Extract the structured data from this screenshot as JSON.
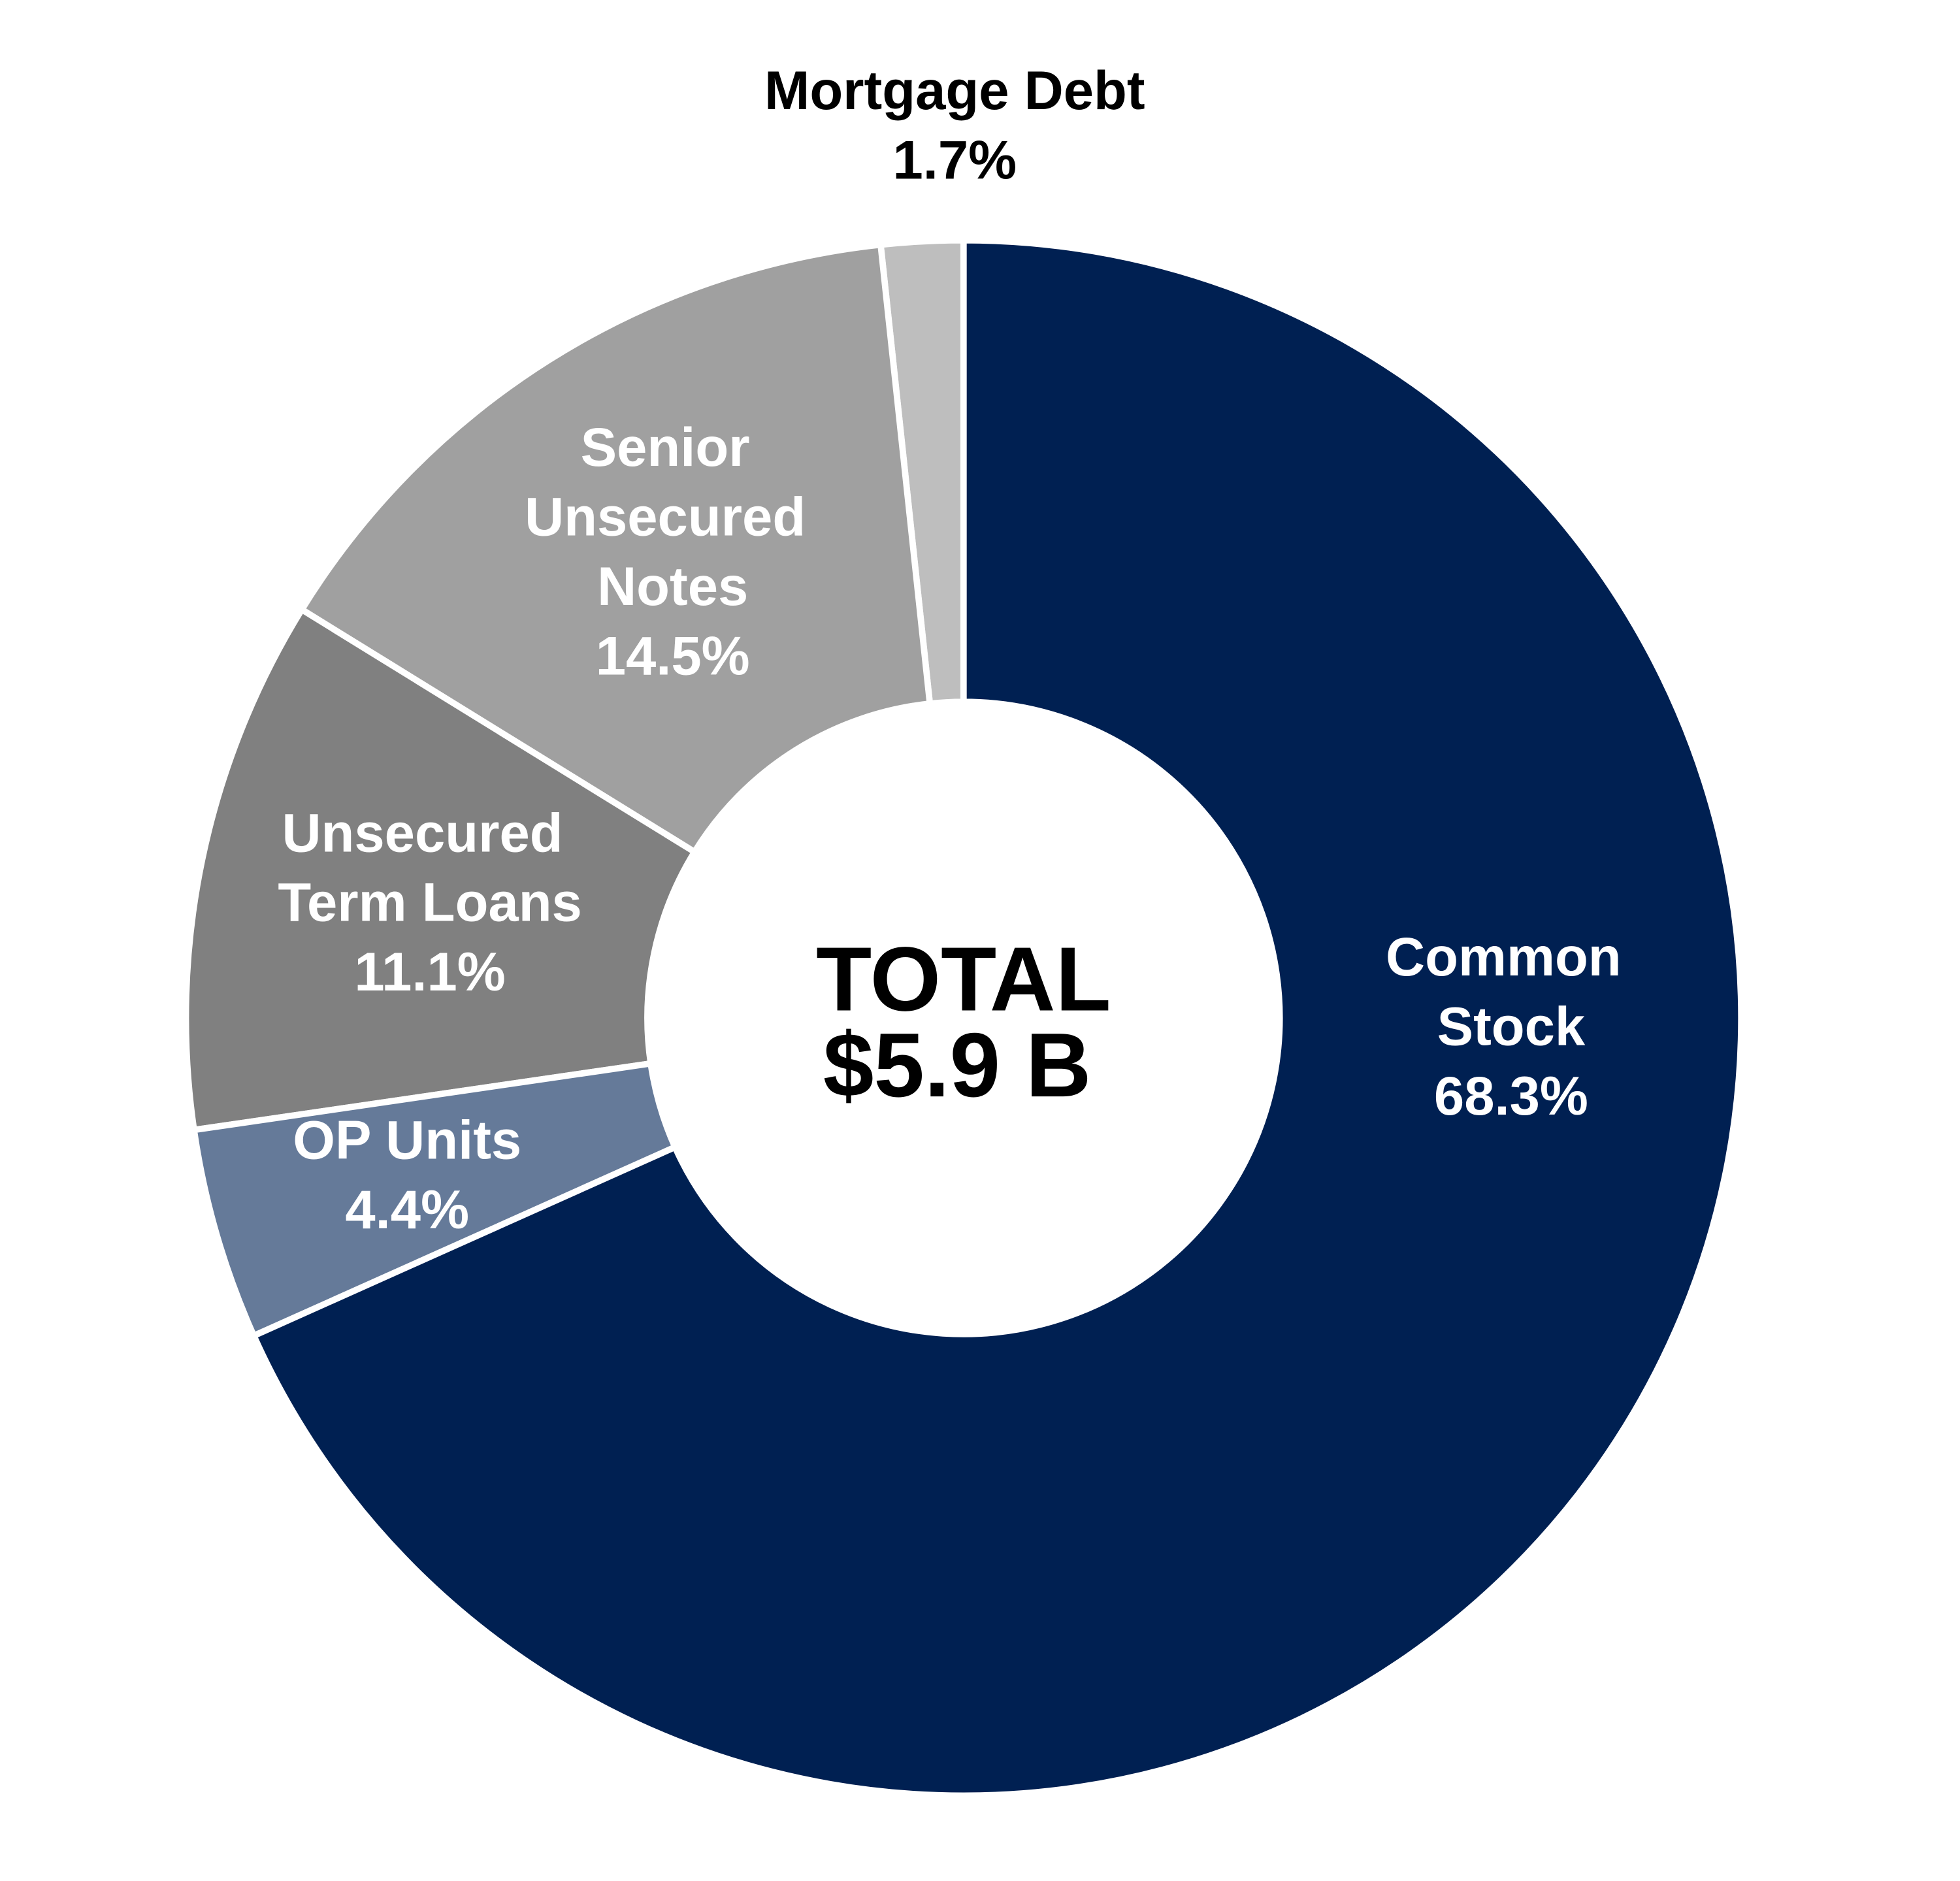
{
  "chart_data": {
    "type": "donut",
    "categories": [
      "Common Stock",
      "OP Units",
      "Unsecured Term Loans",
      "Senior Unsecured Notes",
      "Mortgage Debt"
    ],
    "values": [
      68.3,
      4.4,
      11.1,
      14.5,
      1.7
    ],
    "value_labels": [
      "68.3%",
      "4.4%",
      "11.1%",
      "14.5%",
      "1.7%"
    ],
    "colors": [
      "#002052",
      "#657a99",
      "#808080",
      "#a0a0a0",
      "#bebebe"
    ],
    "annotations": [
      "TOTAL",
      "$5.9 B"
    ]
  }
}
